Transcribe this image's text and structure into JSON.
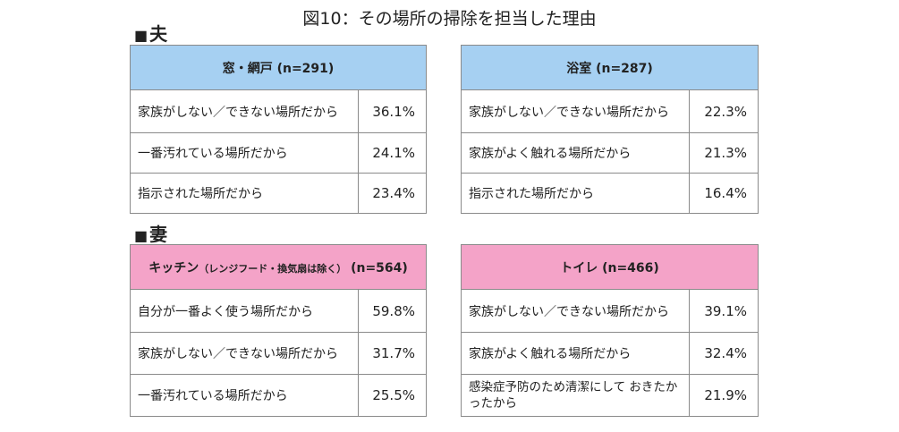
{
  "title": "図10：その場所の掃除を担当した理由",
  "sections": {
    "husband": {
      "marker": "■",
      "label": "夫"
    },
    "wife": {
      "marker": "■",
      "label": "妻"
    }
  },
  "colors": {
    "husband_header": "#a6d0f2",
    "wife_header": "#f4a3c8",
    "border": "#8a8a8a"
  },
  "tables": [
    {
      "header_main": "窓・網戸 (n=291)",
      "header_sub": "",
      "rows": [
        {
          "reason": "家族がしない／できない場所だから",
          "pct": "36.1%"
        },
        {
          "reason": "一番汚れている場所だから",
          "pct": "24.1%"
        },
        {
          "reason": "指示された場所だから",
          "pct": "23.4%"
        }
      ]
    },
    {
      "header_main": "浴室 (n=287)",
      "header_sub": "",
      "rows": [
        {
          "reason": "家族がしない／できない場所だから",
          "pct": "22.3%"
        },
        {
          "reason": "家族がよく触れる場所だから",
          "pct": "21.3%"
        },
        {
          "reason": "指示された場所だから",
          "pct": "16.4%"
        }
      ]
    },
    {
      "header_main": "キッチン",
      "header_sub": "（レンジフード・換気扇は除く）",
      "header_n": "(n=564)",
      "rows": [
        {
          "reason": "自分が一番よく使う場所だから",
          "pct": "59.8%"
        },
        {
          "reason": "家族がしない／できない場所だから",
          "pct": "31.7%"
        },
        {
          "reason": "一番汚れている場所だから",
          "pct": "25.5%"
        }
      ]
    },
    {
      "header_main": "トイレ (n=466)",
      "header_sub": "",
      "rows": [
        {
          "reason": "家族がしない／できない場所だから",
          "pct": "39.1%"
        },
        {
          "reason": "家族がよく触れる場所だから",
          "pct": "32.4%"
        },
        {
          "reason": "感染症予防のため清潔にして おきたかったから",
          "pct": "21.9%"
        }
      ]
    }
  ]
}
